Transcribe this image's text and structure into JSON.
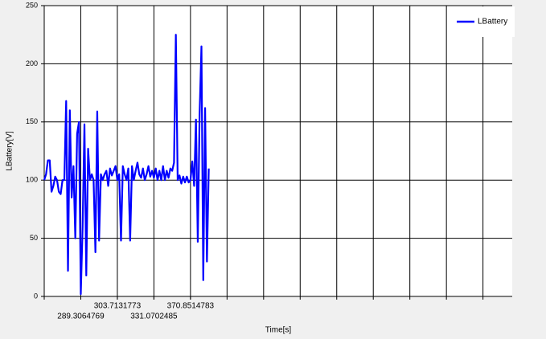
{
  "chart_data": {
    "type": "line",
    "y_label": "LBattery[V]",
    "x_label": "Time[s]",
    "ylim": [
      0,
      250
    ],
    "yticks": [
      0,
      50,
      100,
      150,
      200,
      250
    ],
    "xlim": [
      0,
      256
    ],
    "xticks": [
      {
        "value": 20,
        "label": "289.3064769"
      },
      {
        "value": 40,
        "label": "303.7131773"
      },
      {
        "value": 60,
        "label": "331.0702485"
      },
      {
        "value": 80,
        "label": "370.8514783"
      }
    ],
    "grid": true,
    "legend": "top-right",
    "series": [
      {
        "name": "LBattery",
        "color": "#0000ff",
        "values": [
          100,
          105,
          117,
          117,
          90,
          95,
          103,
          100,
          90,
          88,
          100,
          100,
          168,
          22,
          160,
          85,
          112,
          50,
          140,
          150,
          2,
          60,
          148,
          18,
          127,
          100,
          105,
          100,
          38,
          159,
          48,
          105,
          100,
          105,
          108,
          95,
          110,
          104,
          108,
          112,
          100,
          105,
          48,
          112,
          105,
          100,
          110,
          48,
          112,
          100,
          108,
          115,
          105,
          102,
          110,
          100,
          105,
          112,
          103,
          108,
          102,
          110,
          100,
          108,
          100,
          112,
          100,
          108,
          102,
          110,
          108,
          115,
          225,
          100,
          104,
          97,
          103,
          98,
          103,
          98,
          100,
          116,
          95,
          152,
          47,
          157,
          215,
          14,
          162,
          30,
          110
        ]
      }
    ]
  }
}
